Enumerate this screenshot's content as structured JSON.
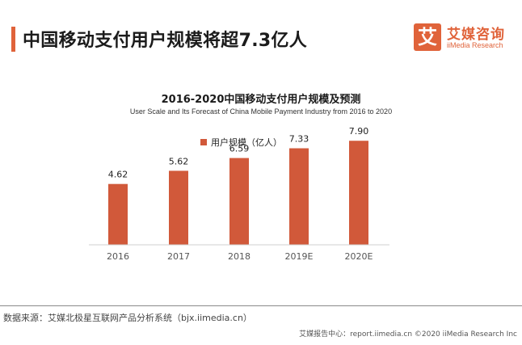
{
  "header": {
    "title": "中国移动支付用户规模将超7.3亿人",
    "accent_color": "#e0633a"
  },
  "logo": {
    "mark": "艾",
    "name_cn": "艾媒咨询",
    "name_en": "iiMedia Research"
  },
  "chart_data": {
    "type": "bar",
    "title": "2016-2020中国移动支付用户规模及预测",
    "subtitle": "User Scale and Its Forecast of China Mobile Payment Industry from 2016 to 2020",
    "categories": [
      "2016",
      "2017",
      "2018",
      "2019E",
      "2020E"
    ],
    "series": [
      {
        "name": "用户规模（亿人）",
        "values": [
          4.62,
          5.62,
          6.59,
          7.33,
          7.9
        ],
        "color": "#d1593a"
      }
    ],
    "data_labels": [
      "4.62",
      "5.62",
      "6.59",
      "7.33",
      "7.90"
    ],
    "ylim": [
      0,
      10
    ],
    "grid": false,
    "legend_position": "top"
  },
  "footer": {
    "source": "数据来源：艾媒北极星互联网产品分析系统（bjx.iimedia.cn）",
    "copyright": "艾媒报告中心：report.iimedia.cn  ©2020  iiMedia Research  Inc"
  }
}
